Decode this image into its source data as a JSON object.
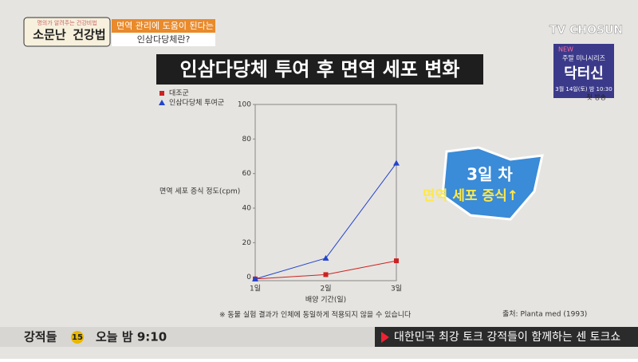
{
  "screen": {
    "logo_top": "명의가 알려주는 건강비법",
    "logo": "소문난",
    "logo2": "건강법",
    "topic_line1": "면역 관리에 도움이 된다는",
    "topic_line2": "인삼다당체란?",
    "channel": "TV CHOSUN",
    "promo_new": "NEW",
    "promo_sub": "주말 미니시리즈",
    "promo_title": "닥터신",
    "promo_date": "3월 14일(토) 밤 10:30",
    "promo_first": "첫 방송",
    "callout1": "3일 차",
    "callout2": "면역 세포 증식↑",
    "note": "※ 동물 실험 결과가 인체에 동일하게 적용되지 않을 수 있습니다",
    "source": "출처: Planta med (1993)",
    "show": "강적들",
    "show_ep": "15",
    "show_time": "오늘 밤 9:10",
    "ticker": "대한민국 최강 토크 강적들이 함께하는 센 토크쇼"
  },
  "chart_data": {
    "type": "line",
    "title": "인삼다당체 투여 후 면역 세포 변화",
    "x_label": "배양 기간(일)",
    "y_label": "면역 세포 증식 정도(cpm)",
    "categories": [
      "1일",
      "2일",
      "3일"
    ],
    "series": [
      {
        "name": "대조군",
        "color": "#cc2222",
        "marker": "square",
        "values": [
          -1,
          1.5,
          9.5
        ]
      },
      {
        "name": "인삼다당체 투여군",
        "color": "#2244cc",
        "marker": "triangle",
        "values": [
          -1,
          11,
          66
        ]
      }
    ],
    "ylim": [
      -2,
      100
    ],
    "yticks": [
      0,
      20,
      40,
      60,
      80,
      100
    ]
  }
}
